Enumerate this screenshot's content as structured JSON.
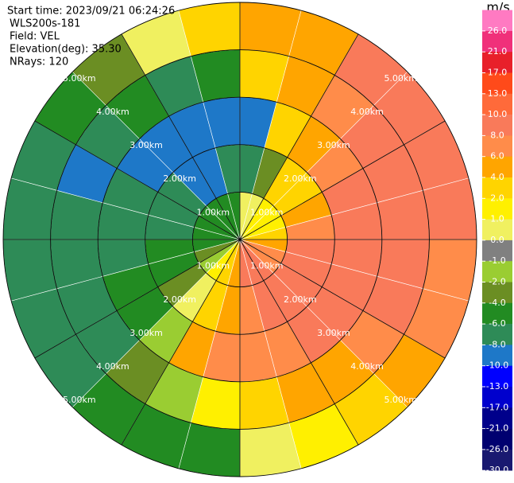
{
  "chart_data": {
    "type": "ppi",
    "header": [
      "Start time: 2023/09/21 06:24:26",
      "WLS200s-181",
      "Field: VEL",
      "Elevation(deg): 35.30",
      "NRays: 120"
    ],
    "rlim": [
      0,
      5
    ],
    "rticks": [
      {
        "value": 1,
        "label": "1.00km"
      },
      {
        "value": 2,
        "label": "2.00km"
      },
      {
        "value": 3,
        "label": "3.00km"
      },
      {
        "value": 4,
        "label": "4.00km"
      },
      {
        "value": 5,
        "label": "5.00km"
      }
    ],
    "azimuths": [
      0,
      15,
      30,
      45,
      60,
      75,
      90,
      105,
      120,
      135,
      150,
      165,
      180,
      195,
      210,
      225,
      240,
      255,
      270,
      285,
      300,
      315,
      330,
      345
    ],
    "range_bins": [
      0,
      1,
      2,
      3,
      4,
      5
    ],
    "values": [
      [
        0.5,
        -6,
        -8,
        3,
        5
      ],
      [
        0.5,
        -2,
        3,
        5,
        6
      ],
      [
        1.5,
        3,
        5,
        7,
        9
      ],
      [
        1.5,
        3,
        7,
        9,
        9
      ],
      [
        1.5,
        5,
        9,
        9,
        9
      ],
      [
        3,
        7,
        9,
        9,
        9
      ],
      [
        5,
        9,
        9,
        9,
        7
      ],
      [
        7,
        9,
        9,
        9,
        7
      ],
      [
        7,
        9,
        9,
        7,
        5
      ],
      [
        9,
        9,
        9,
        5,
        3
      ],
      [
        9,
        9,
        7,
        5,
        1.5
      ],
      [
        9,
        7,
        7,
        3,
        0.5
      ],
      [
        5,
        5,
        7,
        1.5,
        -5
      ],
      [
        3,
        3,
        5,
        -1.5,
        -5
      ],
      [
        1.5,
        0.5,
        -1.5,
        -3,
        -5
      ],
      [
        -1.5,
        -3,
        -5,
        -7,
        -7
      ],
      [
        -3,
        -5,
        -5,
        -7,
        -7
      ],
      [
        -5,
        -5,
        -7,
        -7,
        -7
      ],
      [
        -5,
        -7,
        -7,
        -7,
        -7
      ],
      [
        -5,
        -7,
        -7,
        -9,
        -7
      ],
      [
        -5,
        -7,
        -9,
        -7,
        -5
      ],
      [
        -5,
        -9,
        -9,
        -5,
        -3
      ],
      [
        -5,
        -9,
        -9,
        -7,
        0.5
      ],
      [
        -5,
        -7,
        -9,
        -5,
        3
      ]
    ],
    "colorbar": {
      "title": "m/s",
      "clim": [
        -30,
        30
      ],
      "ticks": [
        {
          "value": 26,
          "label": "26.0"
        },
        {
          "value": 21,
          "label": "21.0"
        },
        {
          "value": 17,
          "label": "17.0"
        },
        {
          "value": 13,
          "label": "13.0"
        },
        {
          "value": 10,
          "label": "10.0"
        },
        {
          "value": 8,
          "label": "8.0"
        },
        {
          "value": 6,
          "label": "6.0"
        },
        {
          "value": 4,
          "label": "4.0"
        },
        {
          "value": 2,
          "label": "2.0"
        },
        {
          "value": 1,
          "label": "1.0"
        },
        {
          "value": 0,
          "label": "0.0"
        },
        {
          "value": -1,
          "label": "-1.0"
        },
        {
          "value": -2,
          "label": "-2.0"
        },
        {
          "value": -4,
          "label": "-4.0"
        },
        {
          "value": -6,
          "label": "-6.0"
        },
        {
          "value": -8,
          "label": "-8.0"
        },
        {
          "value": -10,
          "label": "-10.0"
        },
        {
          "value": -13,
          "label": "-13.0"
        },
        {
          "value": -17,
          "label": "-17.0"
        },
        {
          "value": -21,
          "label": "-21.0"
        },
        {
          "value": -26,
          "label": "-26.0"
        },
        {
          "value": -30,
          "label": "-30.0"
        }
      ],
      "colors": [
        "#ff7ac2",
        "#f0307a",
        "#e8202a",
        "#ff4a1a",
        "#ff6a3a",
        "#f97a5a",
        "#ff8c4a",
        "#ffa500",
        "#ffd400",
        "#fff000",
        "#f0f060",
        "#808080",
        "#9acd32",
        "#6b8e23",
        "#228b22",
        "#2e8b57",
        "#1e78c8",
        "#0000ff",
        "#0000cd",
        "#00008b",
        "#000070",
        "#191970"
      ]
    }
  }
}
